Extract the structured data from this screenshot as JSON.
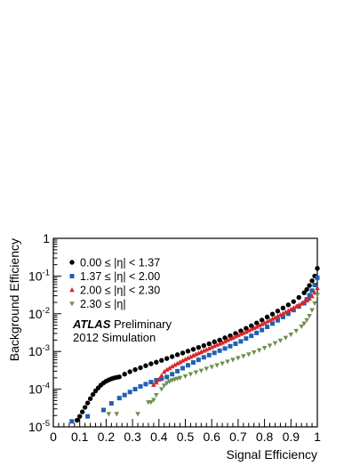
{
  "chart_data": {
    "type": "scatter",
    "xlabel": "Signal Efficiency",
    "ylabel": "Background Efficiency",
    "xlim": [
      0,
      1
    ],
    "ylim": [
      1e-05,
      1
    ],
    "yscale": "log",
    "grid": false,
    "legend_position": "top-left",
    "x_ticks": [
      {
        "value": 0,
        "label": "0"
      },
      {
        "value": 0.1,
        "label": "0.1"
      },
      {
        "value": 0.2,
        "label": "0.2"
      },
      {
        "value": 0.3,
        "label": "0.3"
      },
      {
        "value": 0.4,
        "label": "0.4"
      },
      {
        "value": 0.5,
        "label": "0.5"
      },
      {
        "value": 0.6,
        "label": "0.6"
      },
      {
        "value": 0.7,
        "label": "0.7"
      },
      {
        "value": 0.8,
        "label": "0.8"
      },
      {
        "value": 0.9,
        "label": "0.9"
      },
      {
        "value": 1,
        "label": "1"
      }
    ],
    "y_ticks": [
      {
        "value": 1,
        "base": "1",
        "exp": ""
      },
      {
        "value": 0.1,
        "base": "10",
        "exp": "-1"
      },
      {
        "value": 0.01,
        "base": "10",
        "exp": "-2"
      },
      {
        "value": 0.001,
        "base": "10",
        "exp": "-3"
      },
      {
        "value": 0.0001,
        "base": "10",
        "exp": "-4"
      },
      {
        "value": 1e-05,
        "base": "10",
        "exp": "-5"
      }
    ],
    "annotations": {
      "brand": "ATLAS",
      "text1": "Preliminary",
      "text2": "2012 Simulation"
    },
    "series": [
      {
        "name": "0.00 ≤ |η| < 1.37",
        "marker": "circle",
        "color": "#000000",
        "x": [
          0.09,
          0.1,
          0.11,
          0.12,
          0.13,
          0.14,
          0.15,
          0.16,
          0.17,
          0.18,
          0.19,
          0.2,
          0.21,
          0.22,
          0.23,
          0.24,
          0.25,
          0.27,
          0.29,
          0.31,
          0.33,
          0.35,
          0.37,
          0.39,
          0.41,
          0.43,
          0.45,
          0.47,
          0.49,
          0.51,
          0.53,
          0.55,
          0.57,
          0.59,
          0.61,
          0.63,
          0.65,
          0.67,
          0.69,
          0.71,
          0.73,
          0.75,
          0.77,
          0.79,
          0.81,
          0.83,
          0.85,
          0.87,
          0.89,
          0.91,
          0.93,
          0.95,
          0.96,
          0.97,
          0.98,
          0.99,
          1.0
        ],
        "y": [
          1.5e-05,
          1.9e-05,
          2.5e-05,
          3.3e-05,
          4.3e-05,
          5.6e-05,
          7.2e-05,
          9e-05,
          0.000108,
          0.000128,
          0.000146,
          0.000162,
          0.000176,
          0.000188,
          0.000198,
          0.000206,
          0.000212,
          0.00025,
          0.00029,
          0.00033,
          0.00037,
          0.00042,
          0.00047,
          0.00052,
          0.00058,
          0.00065,
          0.00073,
          0.00082,
          0.00091,
          0.00102,
          0.00114,
          0.00128,
          0.00143,
          0.0016,
          0.0018,
          0.002,
          0.0023,
          0.0026,
          0.003,
          0.0035,
          0.0041,
          0.0048,
          0.0057,
          0.0068,
          0.0082,
          0.0098,
          0.0118,
          0.0142,
          0.0172,
          0.021,
          0.027,
          0.036,
          0.044,
          0.056,
          0.075,
          0.1,
          0.16
        ]
      },
      {
        "name": "1.37 ≤ |η| < 2.00",
        "marker": "square",
        "color": "#1f5fb5",
        "x": [
          0.07,
          0.13,
          0.19,
          0.22,
          0.25,
          0.27,
          0.29,
          0.31,
          0.33,
          0.35,
          0.37,
          0.39,
          0.41,
          0.43,
          0.45,
          0.47,
          0.49,
          0.51,
          0.53,
          0.55,
          0.57,
          0.59,
          0.61,
          0.63,
          0.65,
          0.67,
          0.69,
          0.71,
          0.73,
          0.75,
          0.77,
          0.79,
          0.81,
          0.83,
          0.85,
          0.87,
          0.89,
          0.91,
          0.93,
          0.95,
          0.96,
          0.97,
          0.98,
          0.99,
          1.0
        ],
        "y": [
          1.4e-05,
          1.9e-05,
          2.8e-05,
          4.2e-05,
          5.8e-05,
          7e-05,
          8.4e-05,
          0.0001,
          0.000118,
          0.000136,
          0.000154,
          0.000172,
          0.00019,
          0.00021,
          0.00025,
          0.0003,
          0.00036,
          0.00043,
          0.00051,
          0.0006,
          0.0007,
          0.0008,
          0.00092,
          0.00105,
          0.0012,
          0.00138,
          0.0016,
          0.00185,
          0.0022,
          0.0026,
          0.0031,
          0.0037,
          0.0045,
          0.0055,
          0.0067,
          0.0082,
          0.01,
          0.0125,
          0.0155,
          0.019,
          0.024,
          0.031,
          0.041,
          0.058,
          0.09
        ]
      },
      {
        "name": "2.00 ≤ |η| < 2.30",
        "marker": "triangle-up",
        "color": "#d62728",
        "x": [
          0.38,
          0.39,
          0.4,
          0.41,
          0.42,
          0.43,
          0.44,
          0.45,
          0.46,
          0.47,
          0.48,
          0.49,
          0.5,
          0.51,
          0.52,
          0.53,
          0.54,
          0.55,
          0.56,
          0.57,
          0.58,
          0.59,
          0.6,
          0.61,
          0.62,
          0.63,
          0.64,
          0.65,
          0.66,
          0.67,
          0.68,
          0.69,
          0.7,
          0.71,
          0.72,
          0.73,
          0.74,
          0.75,
          0.76,
          0.77,
          0.78,
          0.79,
          0.8,
          0.81,
          0.82,
          0.83,
          0.84,
          0.85,
          0.86,
          0.87,
          0.88,
          0.89,
          0.9,
          0.91,
          0.92,
          0.93,
          0.94,
          0.95,
          0.96,
          0.97,
          0.98,
          0.99,
          1.0
        ],
        "y": [
          0.00013,
          0.00015,
          0.00018,
          0.00023,
          0.00029,
          0.00033,
          0.00036,
          0.0004,
          0.00044,
          0.00048,
          0.00052,
          0.00057,
          0.00062,
          0.00067,
          0.00072,
          0.00078,
          0.00084,
          0.0009,
          0.00097,
          0.00104,
          0.00112,
          0.0012,
          0.0013,
          0.0014,
          0.0015,
          0.0016,
          0.0017,
          0.00185,
          0.002,
          0.00215,
          0.0023,
          0.0025,
          0.0027,
          0.0029,
          0.0031,
          0.0033,
          0.0036,
          0.0039,
          0.0042,
          0.0045,
          0.0049,
          0.0053,
          0.0057,
          0.0062,
          0.0067,
          0.0073,
          0.0079,
          0.0086,
          0.0093,
          0.0101,
          0.011,
          0.012,
          0.0131,
          0.0143,
          0.0156,
          0.017,
          0.0186,
          0.0204,
          0.0225,
          0.025,
          0.029,
          0.036,
          0.048
        ]
      },
      {
        "name": "2.30 ≤ |η|",
        "marker": "triangle-down",
        "color": "#6f8f4f",
        "x": [
          0.21,
          0.24,
          0.32,
          0.36,
          0.37,
          0.38,
          0.39,
          0.41,
          0.42,
          0.43,
          0.44,
          0.45,
          0.46,
          0.47,
          0.48,
          0.5,
          0.52,
          0.54,
          0.56,
          0.58,
          0.6,
          0.62,
          0.64,
          0.66,
          0.68,
          0.7,
          0.72,
          0.74,
          0.76,
          0.78,
          0.8,
          0.82,
          0.84,
          0.86,
          0.88,
          0.9,
          0.92,
          0.94,
          0.95,
          0.96,
          0.97,
          0.98,
          0.99,
          1.0
        ],
        "y": [
          2.2e-05,
          2.2e-05,
          2.2e-05,
          4.5e-05,
          4.5e-05,
          5.2e-05,
          7e-05,
          0.0001,
          0.000125,
          0.000145,
          0.00016,
          0.000172,
          0.000182,
          0.00019,
          0.0002,
          0.00022,
          0.00025,
          0.00028,
          0.00031,
          0.00035,
          0.00039,
          0.00043,
          0.00048,
          0.00054,
          0.0006,
          0.00067,
          0.00075,
          0.00084,
          0.00095,
          0.00108,
          0.00124,
          0.00143,
          0.00166,
          0.00195,
          0.0023,
          0.0028,
          0.0035,
          0.0046,
          0.0055,
          0.0068,
          0.0088,
          0.0125,
          0.019,
          0.032
        ]
      }
    ]
  }
}
